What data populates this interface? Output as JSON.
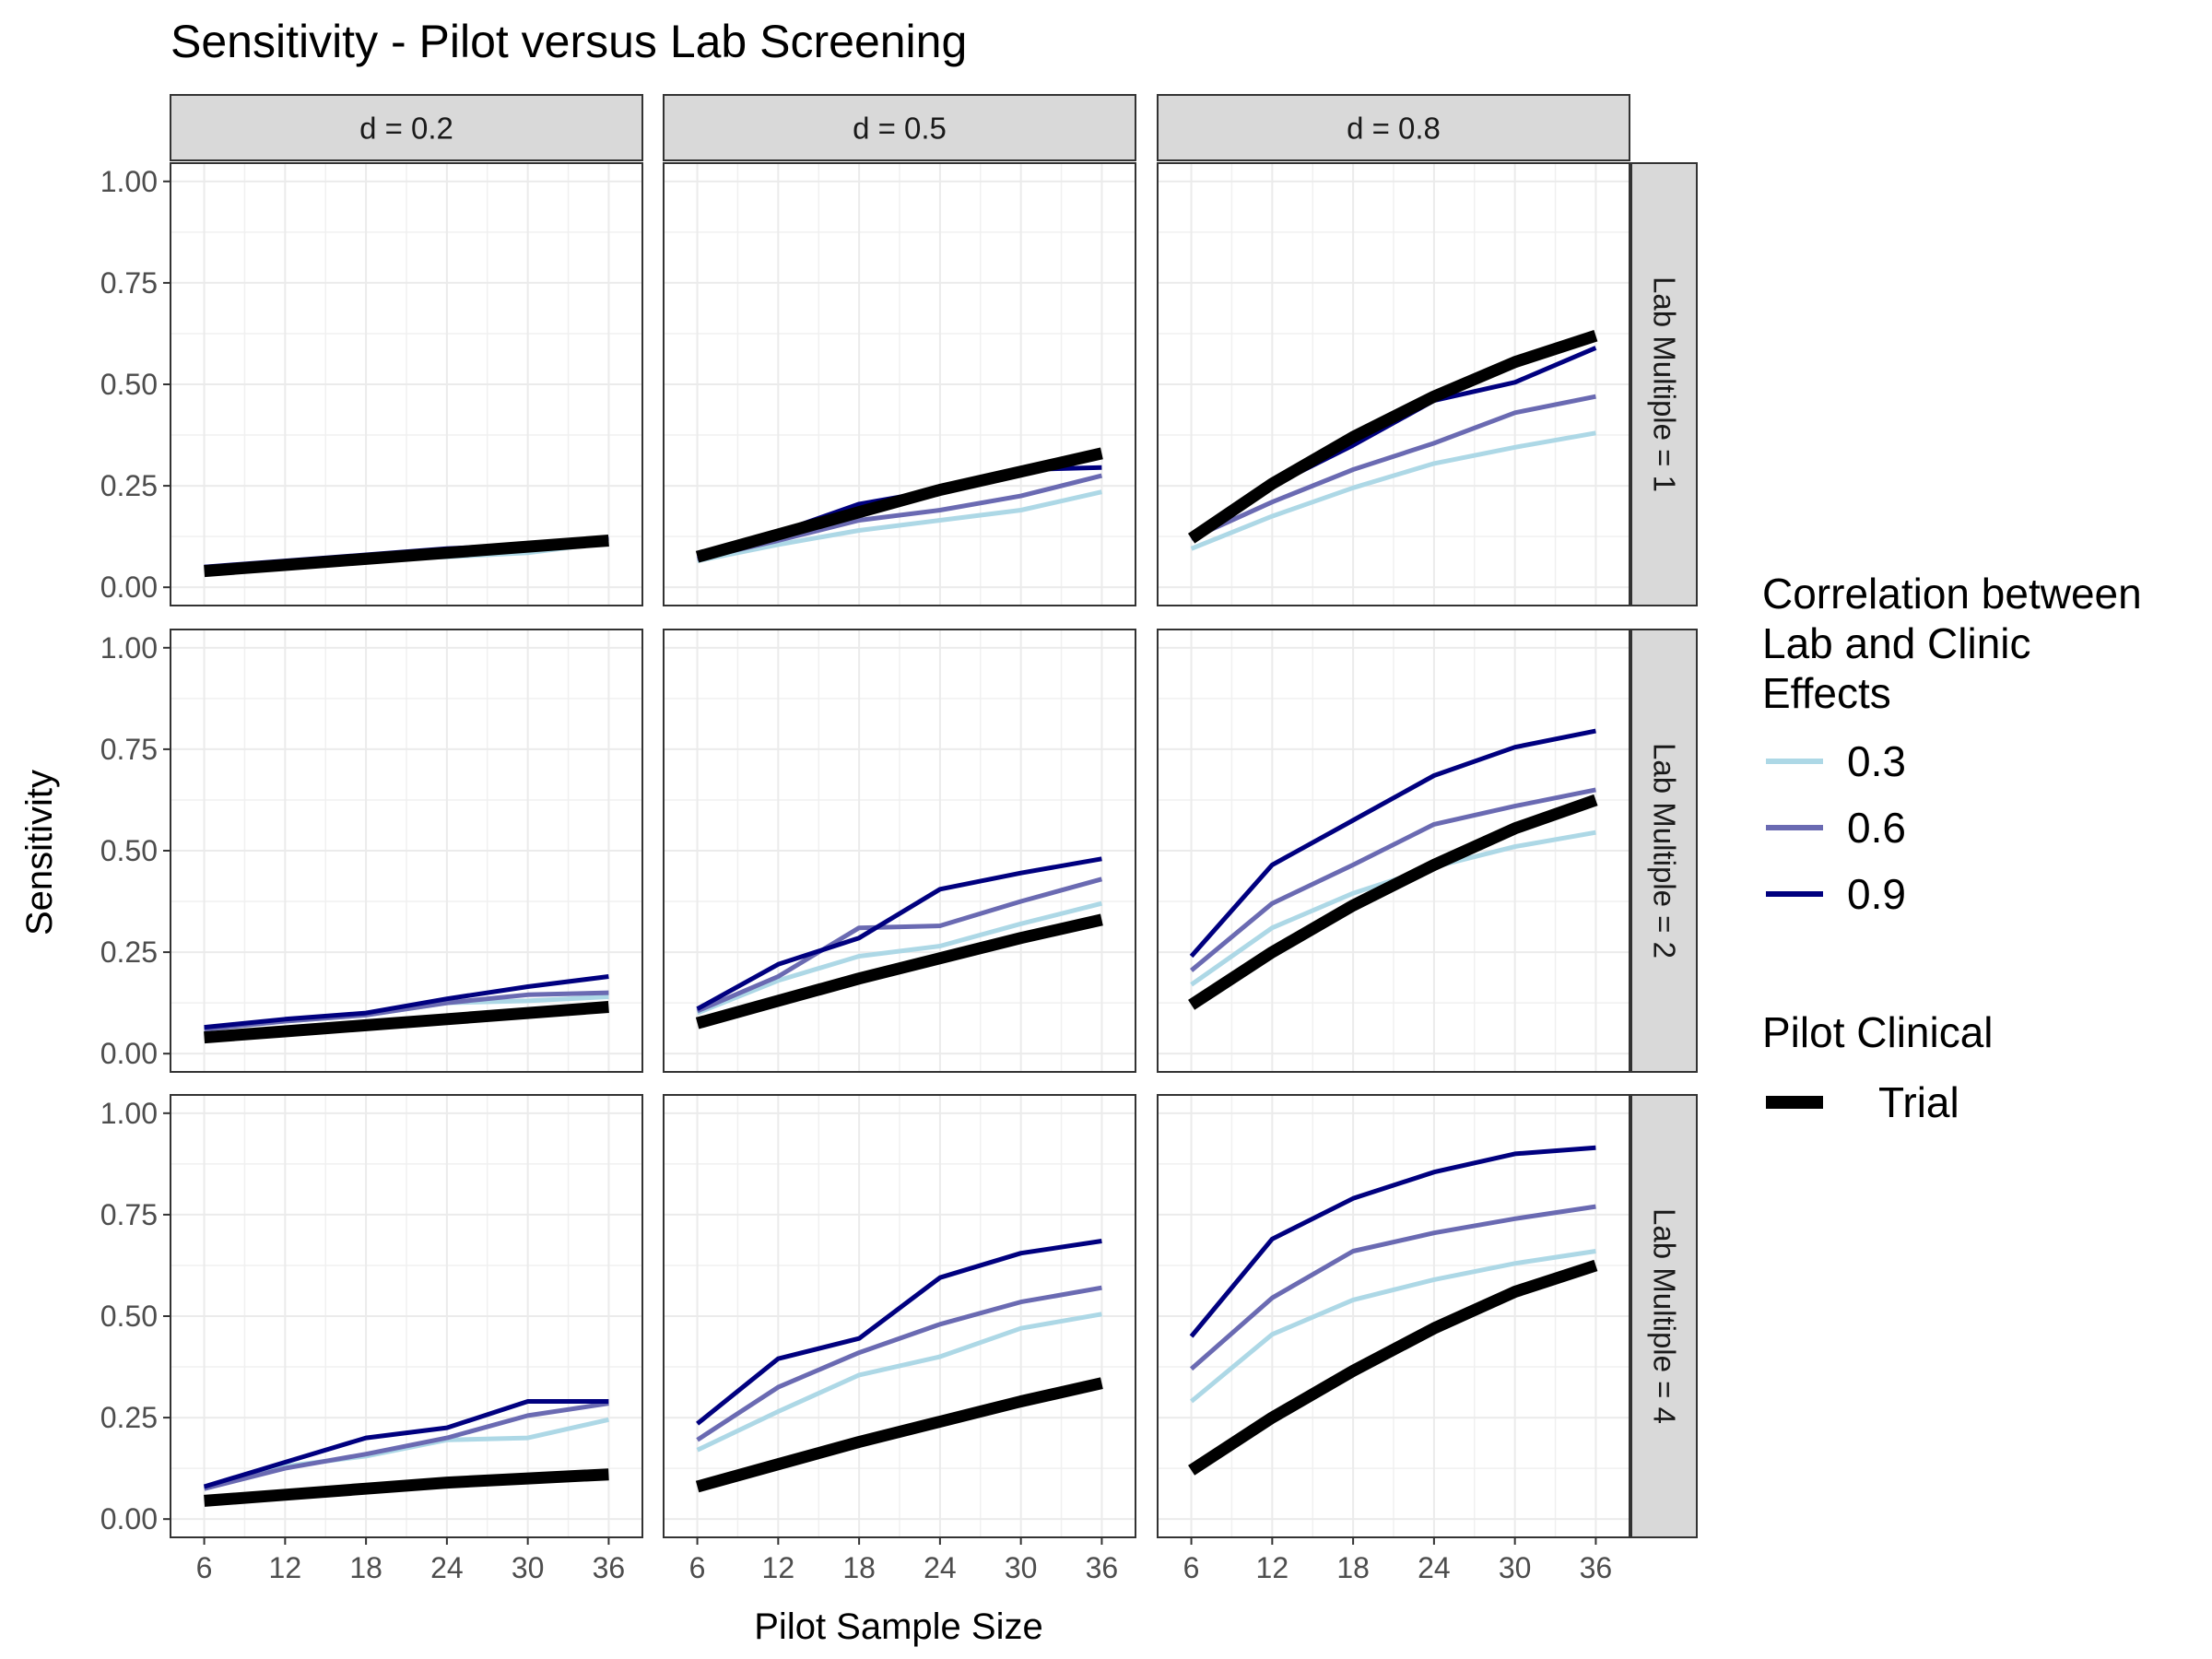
{
  "chart_data": {
    "type": "line",
    "title": "Sensitivity - Pilot versus Lab Screening",
    "xlabel": "Pilot Sample Size",
    "ylabel": "Sensitivity",
    "x": [
      6,
      12,
      18,
      24,
      30,
      36
    ],
    "x_ticks": [
      "6",
      "12",
      "18",
      "24",
      "30",
      "36"
    ],
    "xlim": [
      3.5,
      38.5
    ],
    "y_ticks": [
      "0.00",
      "0.25",
      "0.50",
      "0.75",
      "1.00"
    ],
    "ylim": [
      -0.045,
      1.045
    ],
    "grid": true,
    "facet_cols": [
      "d =  0.2",
      "d =  0.5",
      "d =  0.8"
    ],
    "facet_rows": [
      "Lab Multiple = 1",
      "Lab Multiple = 2",
      "Lab Multiple = 4"
    ],
    "legend_placement": "right",
    "legend": {
      "correlation_title_lines": [
        "Correlation between",
        "Lab and Clinic",
        "Effects"
      ],
      "correlation_items": [
        "0.3",
        "0.6",
        "0.9"
      ],
      "pilot_title": "Pilot Clinical",
      "pilot_items": [
        "Trial"
      ]
    },
    "series_colors": {
      "0.3": "#add8e6",
      "0.6": "#6a6ab2",
      "0.9": "#00007f",
      "Trial": "#000000"
    },
    "panels": [
      {
        "row": 0,
        "col": 0,
        "series": [
          {
            "name": "0.3",
            "values": [
              0.05,
              0.06,
              0.07,
              0.075,
              0.085,
              0.11
            ]
          },
          {
            "name": "0.6",
            "values": [
              0.05,
              0.06,
              0.075,
              0.09,
              0.1,
              0.115
            ]
          },
          {
            "name": "0.9",
            "values": [
              0.05,
              0.065,
              0.08,
              0.095,
              0.105,
              0.12
            ]
          },
          {
            "name": "Trial",
            "values": [
              0.04,
              0.055,
              0.07,
              0.085,
              0.1,
              0.115
            ]
          }
        ]
      },
      {
        "row": 0,
        "col": 1,
        "series": [
          {
            "name": "0.3",
            "values": [
              0.065,
              0.105,
              0.14,
              0.165,
              0.19,
              0.235
            ]
          },
          {
            "name": "0.6",
            "values": [
              0.07,
              0.115,
              0.165,
              0.19,
              0.225,
              0.275
            ]
          },
          {
            "name": "0.9",
            "values": [
              0.075,
              0.135,
              0.205,
              0.24,
              0.29,
              0.295
            ]
          },
          {
            "name": "Trial",
            "values": [
              0.075,
              0.13,
              0.185,
              0.24,
              0.285,
              0.33
            ]
          }
        ]
      },
      {
        "row": 0,
        "col": 2,
        "series": [
          {
            "name": "0.3",
            "values": [
              0.095,
              0.175,
              0.245,
              0.305,
              0.345,
              0.38
            ]
          },
          {
            "name": "0.6",
            "values": [
              0.12,
              0.21,
              0.29,
              0.355,
              0.43,
              0.47
            ]
          },
          {
            "name": "0.9",
            "values": [
              0.12,
              0.25,
              0.35,
              0.46,
              0.505,
              0.59
            ]
          },
          {
            "name": "Trial",
            "values": [
              0.12,
              0.255,
              0.37,
              0.47,
              0.555,
              0.62
            ]
          }
        ]
      },
      {
        "row": 1,
        "col": 0,
        "series": [
          {
            "name": "0.3",
            "values": [
              0.06,
              0.08,
              0.095,
              0.125,
              0.13,
              0.14
            ]
          },
          {
            "name": "0.6",
            "values": [
              0.06,
              0.08,
              0.095,
              0.125,
              0.145,
              0.15
            ]
          },
          {
            "name": "0.9",
            "values": [
              0.065,
              0.085,
              0.1,
              0.135,
              0.165,
              0.19
            ]
          },
          {
            "name": "Trial",
            "values": [
              0.04,
              0.055,
              0.07,
              0.085,
              0.1,
              0.115
            ]
          }
        ]
      },
      {
        "row": 1,
        "col": 1,
        "series": [
          {
            "name": "0.3",
            "values": [
              0.1,
              0.18,
              0.24,
              0.265,
              0.32,
              0.37
            ]
          },
          {
            "name": "0.6",
            "values": [
              0.105,
              0.19,
              0.31,
              0.315,
              0.375,
              0.43
            ]
          },
          {
            "name": "0.9",
            "values": [
              0.11,
              0.22,
              0.285,
              0.405,
              0.445,
              0.48
            ]
          },
          {
            "name": "Trial",
            "values": [
              0.075,
              0.13,
              0.185,
              0.235,
              0.285,
              0.33
            ]
          }
        ]
      },
      {
        "row": 1,
        "col": 2,
        "series": [
          {
            "name": "0.3",
            "values": [
              0.17,
              0.31,
              0.395,
              0.46,
              0.51,
              0.545
            ]
          },
          {
            "name": "0.6",
            "values": [
              0.205,
              0.37,
              0.465,
              0.565,
              0.61,
              0.65
            ]
          },
          {
            "name": "0.9",
            "values": [
              0.24,
              0.465,
              0.575,
              0.685,
              0.755,
              0.795
            ]
          },
          {
            "name": "Trial",
            "values": [
              0.12,
              0.25,
              0.365,
              0.465,
              0.555,
              0.625
            ]
          }
        ]
      },
      {
        "row": 2,
        "col": 0,
        "series": [
          {
            "name": "0.3",
            "values": [
              0.075,
              0.13,
              0.155,
              0.195,
              0.2,
              0.245
            ]
          },
          {
            "name": "0.6",
            "values": [
              0.075,
              0.125,
              0.16,
              0.2,
              0.255,
              0.285
            ]
          },
          {
            "name": "0.9",
            "values": [
              0.08,
              0.14,
              0.2,
              0.225,
              0.29,
              0.29
            ]
          },
          {
            "name": "Trial",
            "values": [
              0.045,
              0.06,
              0.075,
              0.09,
              0.1,
              0.11
            ]
          }
        ]
      },
      {
        "row": 2,
        "col": 1,
        "series": [
          {
            "name": "0.3",
            "values": [
              0.17,
              0.265,
              0.355,
              0.4,
              0.47,
              0.505
            ]
          },
          {
            "name": "0.6",
            "values": [
              0.195,
              0.325,
              0.41,
              0.48,
              0.535,
              0.57
            ]
          },
          {
            "name": "0.9",
            "values": [
              0.235,
              0.395,
              0.445,
              0.595,
              0.655,
              0.685
            ]
          },
          {
            "name": "Trial",
            "values": [
              0.08,
              0.135,
              0.19,
              0.24,
              0.29,
              0.335
            ]
          }
        ]
      },
      {
        "row": 2,
        "col": 2,
        "series": [
          {
            "name": "0.3",
            "values": [
              0.29,
              0.455,
              0.54,
              0.59,
              0.63,
              0.66
            ]
          },
          {
            "name": "0.6",
            "values": [
              0.37,
              0.545,
              0.66,
              0.705,
              0.74,
              0.77
            ]
          },
          {
            "name": "0.9",
            "values": [
              0.45,
              0.69,
              0.79,
              0.855,
              0.9,
              0.915
            ]
          },
          {
            "name": "Trial",
            "values": [
              0.12,
              0.25,
              0.365,
              0.47,
              0.56,
              0.625
            ]
          }
        ]
      }
    ]
  }
}
